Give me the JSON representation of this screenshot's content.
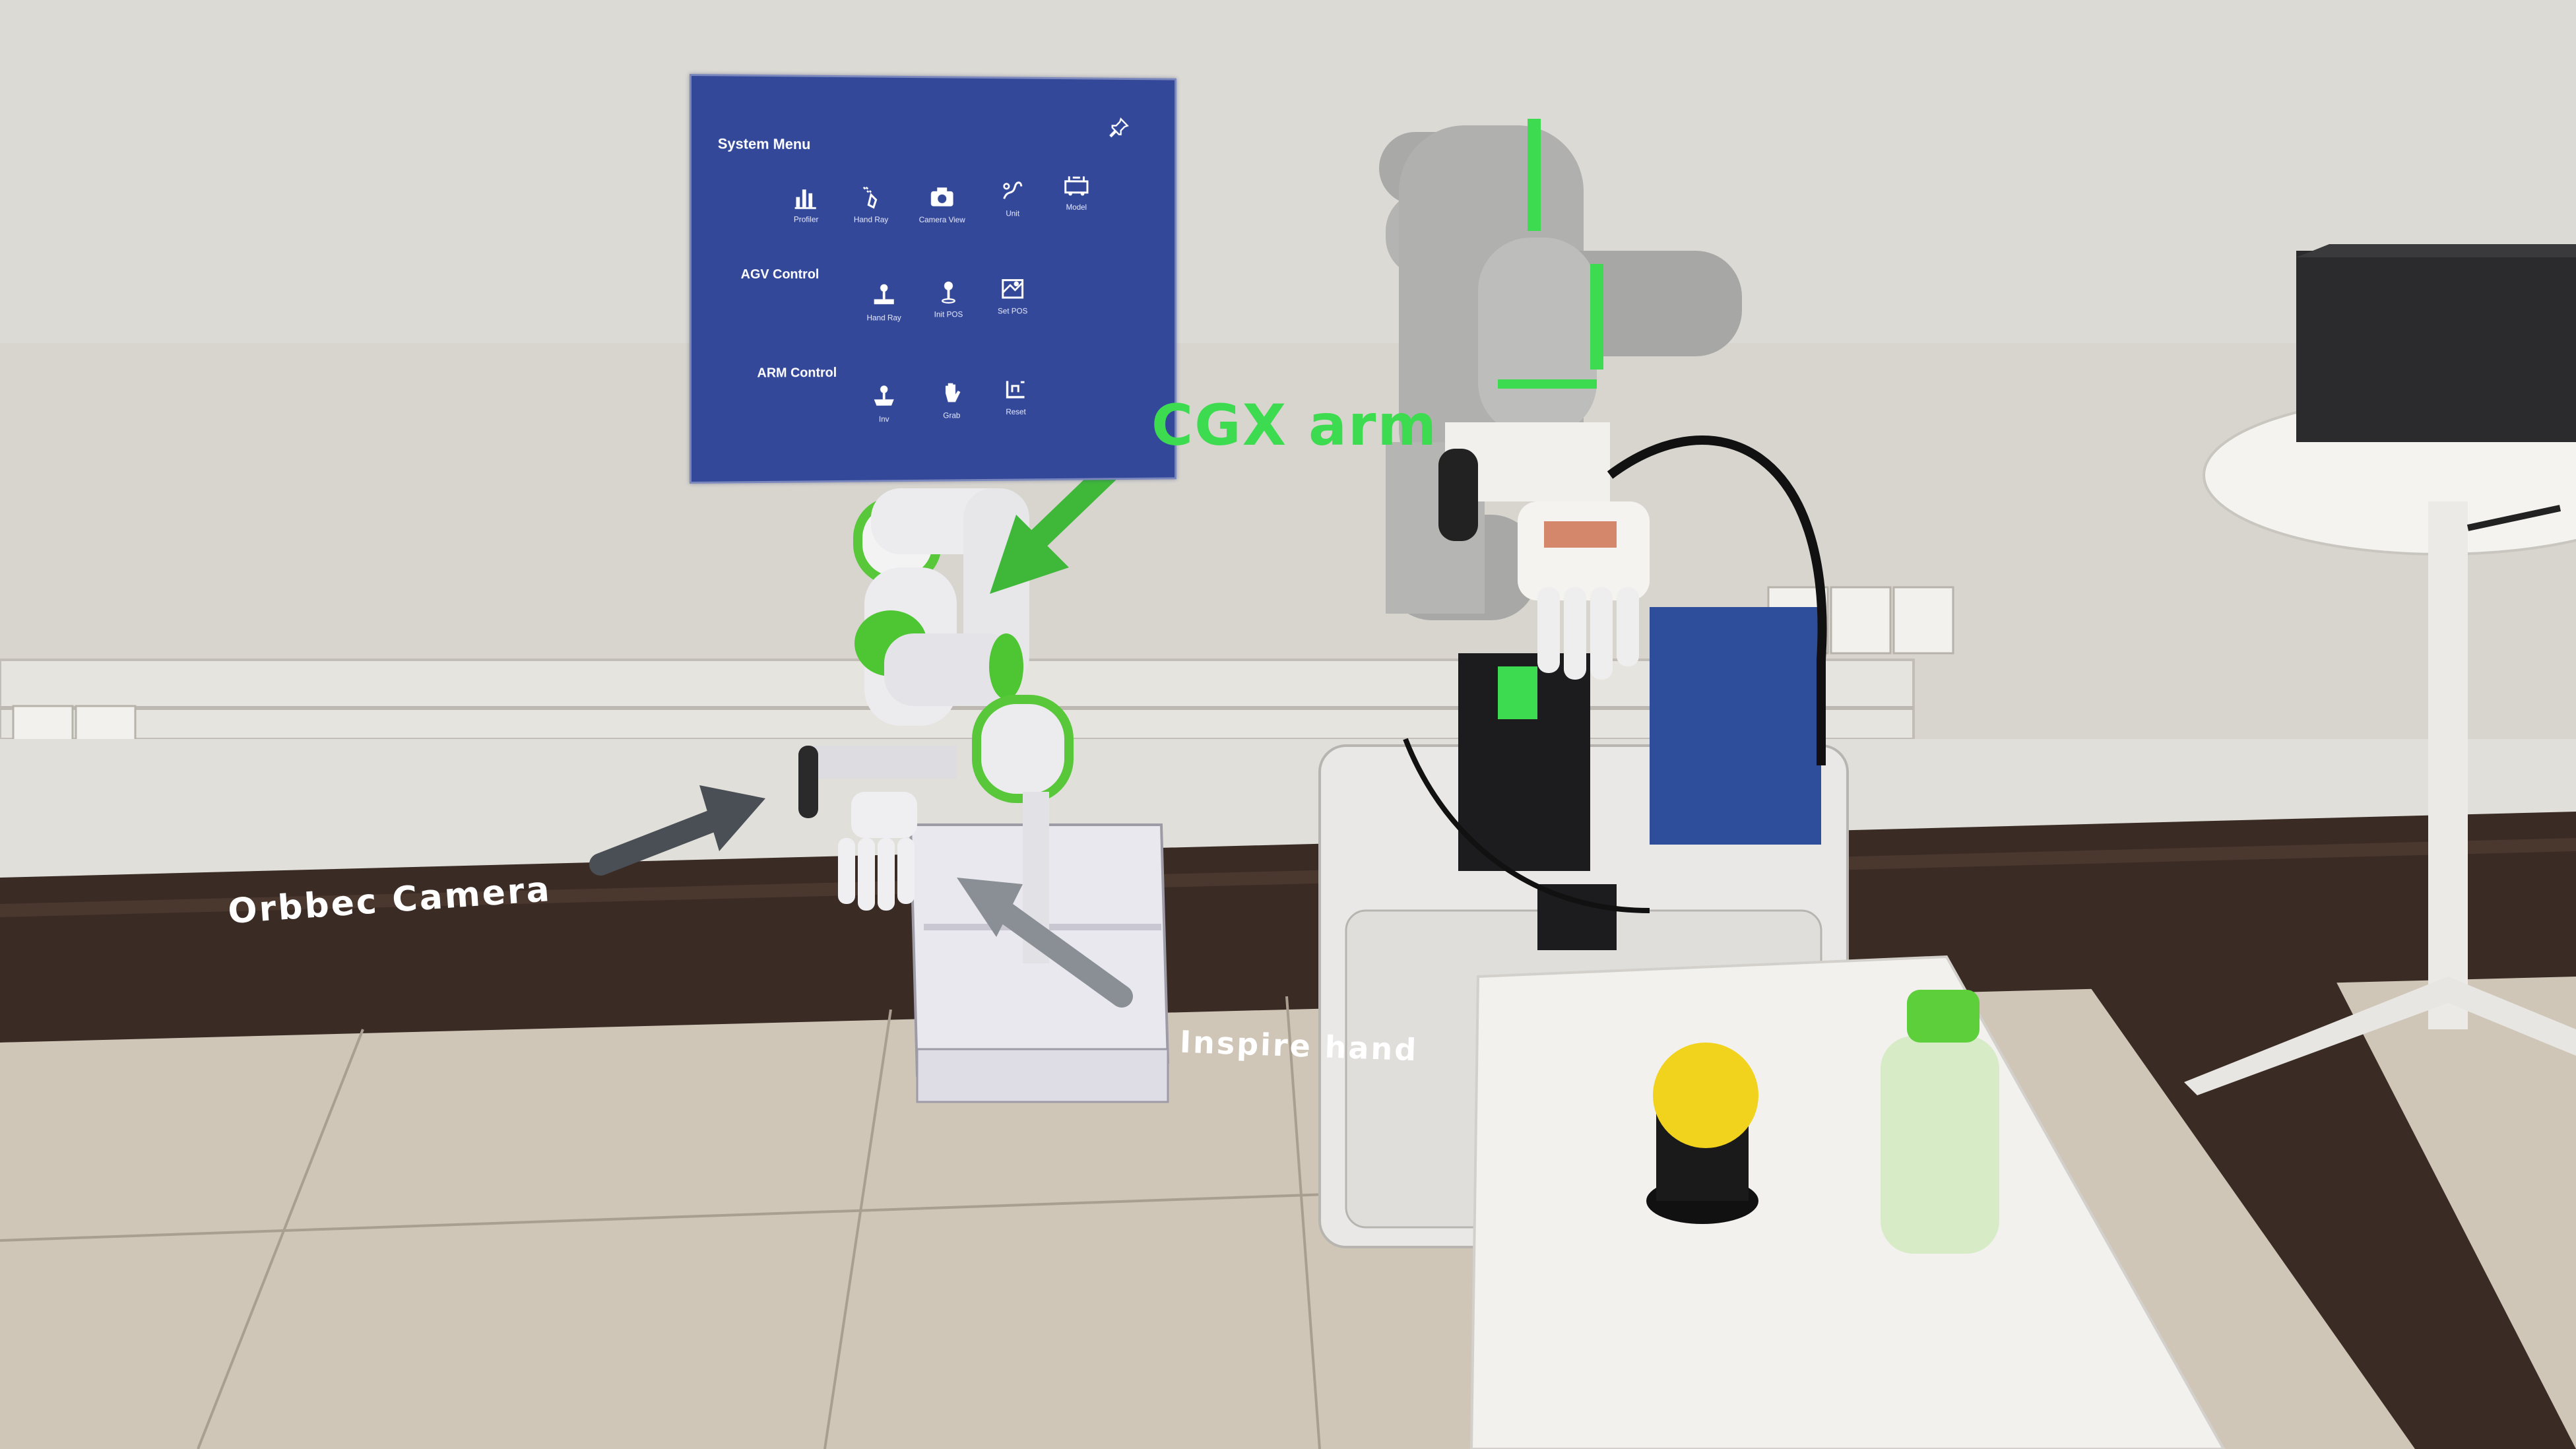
{
  "system_menu": {
    "title": "System Menu",
    "pin_icon": "pin-icon",
    "sections": [
      {
        "title": "",
        "items": [
          {
            "label": "Profiler",
            "icon": "profiler-icon"
          },
          {
            "label": "Hand Ray",
            "icon": "hand-ray-icon"
          },
          {
            "label": "Camera View",
            "icon": "camera-icon"
          },
          {
            "label": "Unit",
            "icon": "unit-icon"
          },
          {
            "label": "Model",
            "icon": "model-icon"
          }
        ]
      },
      {
        "title": "AGV Control",
        "items": [
          {
            "label": "Hand Ray",
            "icon": "joystick-icon"
          },
          {
            "label": "Init POS",
            "icon": "init-pos-icon"
          },
          {
            "label": "Set POS",
            "icon": "set-pos-icon"
          }
        ]
      },
      {
        "title": "ARM Control",
        "items": [
          {
            "label": "Inv",
            "icon": "arm-joystick-icon"
          },
          {
            "label": "Grab",
            "icon": "hand-icon"
          },
          {
            "label": "Reset",
            "icon": "reset-icon"
          }
        ]
      }
    ]
  },
  "labels": {
    "cgx_arm": "CGX arm",
    "orbbec_camera": "Orbbec  Camera",
    "inspire_hand": "Inspire hand"
  },
  "colors": {
    "menu_bg": "#34489a",
    "arm_accent": "#3ddc50",
    "arrow_green": "#3fb83a",
    "arrow_gray": "#4a4f55"
  }
}
